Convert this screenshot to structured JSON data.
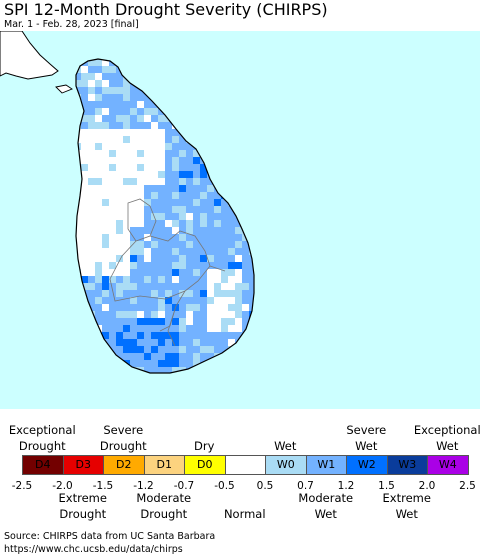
{
  "title": "SPI 12-Month Drought Severity (CHIRPS)",
  "subtitle": "Mar. 1 - Feb. 28, 2023 [final]",
  "map": {
    "ocean_color": "#ccffff",
    "land_color": "#ffffff",
    "region": "Sri Lanka"
  },
  "legend": {
    "top_labels": [
      {
        "text": "Exceptional\nDrought",
        "cat": 0
      },
      {
        "text": "Severe\nDrought",
        "cat": 2
      },
      {
        "text": "Dry",
        "cat": 4
      },
      {
        "text": "Wet",
        "cat": 6
      },
      {
        "text": "Severe\nWet",
        "cat": 8
      },
      {
        "text": "Exceptional\nWet",
        "cat": 10
      }
    ],
    "bottom_labels": [
      {
        "text": "Extreme\nDrought",
        "cat": 1
      },
      {
        "text": "Moderate\nDrought",
        "cat": 3
      },
      {
        "text": "Normal",
        "cat": 5
      },
      {
        "text": "Moderate\nWet",
        "cat": 7
      },
      {
        "text": "Extreme\nWet",
        "cat": 9
      }
    ],
    "categories": [
      {
        "code": "D4",
        "color": "#730000"
      },
      {
        "code": "D3",
        "color": "#e60000"
      },
      {
        "code": "D2",
        "color": "#ffaa00"
      },
      {
        "code": "D1",
        "color": "#fcd37f"
      },
      {
        "code": "D0",
        "color": "#ffff00"
      },
      {
        "code": "",
        "color": "#ffffff"
      },
      {
        "code": "W0",
        "color": "#aadcf5"
      },
      {
        "code": "W1",
        "color": "#73b2ff"
      },
      {
        "code": "W2",
        "color": "#0070ff"
      },
      {
        "code": "W3",
        "color": "#0a3c9b"
      },
      {
        "code": "W4",
        "color": "#aa00e6"
      }
    ],
    "ticks": [
      "-2.5",
      "-2.0",
      "-1.5",
      "-1.2",
      "-0.7",
      "-0.5",
      "0.5",
      "0.7",
      "1.2",
      "1.5",
      "2.0",
      "2.5"
    ]
  },
  "source": {
    "line1": "Source: CHIRPS data from UC Santa Barbara",
    "line2": "https://www.chc.ucsb.edu/data/chirps"
  }
}
